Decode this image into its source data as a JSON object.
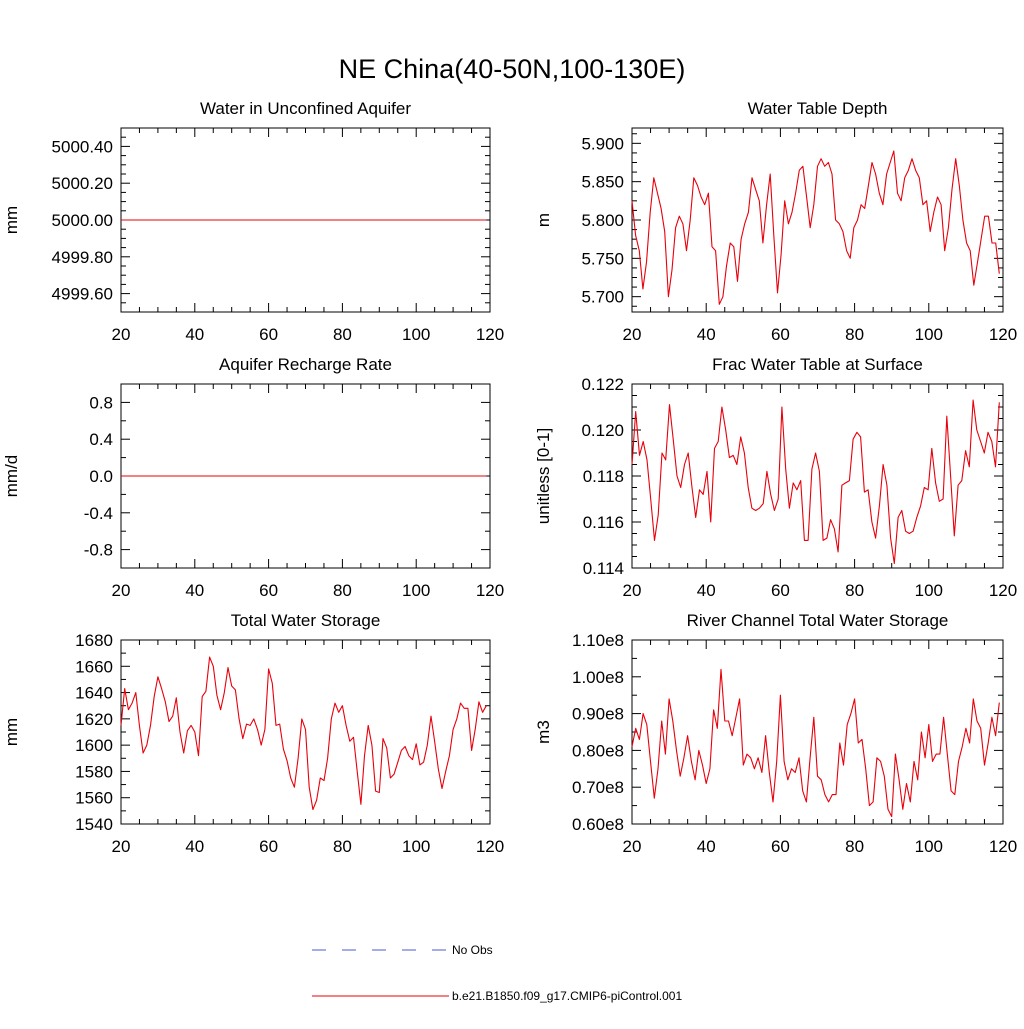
{
  "title": "NE China(40-50N,100-130E)",
  "legend": {
    "entries": [
      {
        "label": "No Obs",
        "color": "#4a5bd4",
        "dash": "dashed"
      },
      {
        "label": "b.e21.B1850.f09_g17.CMIP6-piControl.001",
        "color": "#e8000b",
        "dash": "solid"
      }
    ]
  },
  "chart_data": [
    {
      "type": "line",
      "title": "Water in Unconfined Aquifer",
      "ylabel": "mm",
      "xlim": [
        20,
        120
      ],
      "ylim": [
        4999.5,
        5000.5
      ],
      "x_ticks": [
        20,
        40,
        60,
        80,
        100,
        120
      ],
      "x_tick_labels": [
        "20",
        "40",
        "60",
        "80",
        "100",
        "120"
      ],
      "y_ticks": [
        4999.6,
        4999.8,
        5000.0,
        5000.2,
        5000.4
      ],
      "y_tick_labels": [
        "4999.60",
        "4999.80",
        "5000.00",
        "5000.20",
        "5000.40"
      ],
      "series": [
        {
          "color": "#e8000b",
          "x_start": 20,
          "x_end": 119,
          "values": [
            5000.0,
            5000.0
          ]
        }
      ]
    },
    {
      "type": "line",
      "title": "Water Table Depth",
      "ylabel": "m",
      "xlim": [
        20,
        120
      ],
      "ylim": [
        5.68,
        5.92
      ],
      "x_ticks": [
        20,
        40,
        60,
        80,
        100,
        120
      ],
      "x_tick_labels": [
        "20",
        "40",
        "60",
        "80",
        "100",
        "120"
      ],
      "y_ticks": [
        5.7,
        5.75,
        5.8,
        5.85,
        5.9
      ],
      "y_tick_labels": [
        "5.700",
        "5.750",
        "5.800",
        "5.850",
        "5.900"
      ],
      "series": [
        {
          "color": "#e8000b",
          "x_start": 20,
          "x_end": 119,
          "values": [
            5.825,
            5.78,
            5.76,
            5.71,
            5.745,
            5.81,
            5.855,
            5.835,
            5.815,
            5.785,
            5.7,
            5.735,
            5.79,
            5.805,
            5.795,
            5.76,
            5.8,
            5.855,
            5.845,
            5.83,
            5.82,
            5.835,
            5.765,
            5.76,
            5.69,
            5.7,
            5.74,
            5.77,
            5.765,
            5.72,
            5.775,
            5.795,
            5.81,
            5.855,
            5.84,
            5.825,
            5.77,
            5.82,
            5.86,
            5.78,
            5.705,
            5.755,
            5.825,
            5.795,
            5.81,
            5.835,
            5.865,
            5.87,
            5.83,
            5.79,
            5.82,
            5.87,
            5.88,
            5.87,
            5.875,
            5.86,
            5.8,
            5.795,
            5.785,
            5.76,
            5.75,
            5.79,
            5.8,
            5.82,
            5.815,
            5.845,
            5.875,
            5.86,
            5.835,
            5.82,
            5.86,
            5.875,
            5.89,
            5.835,
            5.825,
            5.855,
            5.865,
            5.88,
            5.865,
            5.855,
            5.82,
            5.825,
            5.785,
            5.81,
            5.83,
            5.82,
            5.76,
            5.79,
            5.84,
            5.88,
            5.845,
            5.8,
            5.77,
            5.76,
            5.715,
            5.745,
            5.775,
            5.805,
            5.805,
            5.77,
            5.77,
            5.73
          ]
        }
      ]
    },
    {
      "type": "line",
      "title": "Aquifer Recharge Rate",
      "ylabel": "mm/d",
      "xlim": [
        20,
        120
      ],
      "ylim": [
        -1.0,
        1.0
      ],
      "x_ticks": [
        20,
        40,
        60,
        80,
        100,
        120
      ],
      "x_tick_labels": [
        "20",
        "40",
        "60",
        "80",
        "100",
        "120"
      ],
      "y_ticks": [
        -0.8,
        -0.4,
        0.0,
        0.4,
        0.8
      ],
      "y_tick_labels": [
        "-0.8",
        "-0.4",
        "0.0",
        "0.4",
        "0.8"
      ],
      "series": [
        {
          "color": "#e8000b",
          "x_start": 20,
          "x_end": 119,
          "values": [
            0.0,
            0.0
          ]
        }
      ]
    },
    {
      "type": "line",
      "title": "Frac Water Table at Surface",
      "ylabel": "unitless [0-1]",
      "xlim": [
        20,
        120
      ],
      "ylim": [
        0.114,
        0.122
      ],
      "x_ticks": [
        20,
        40,
        60,
        80,
        100,
        120
      ],
      "x_tick_labels": [
        "20",
        "40",
        "60",
        "80",
        "100",
        "120"
      ],
      "y_ticks": [
        0.114,
        0.116,
        0.118,
        0.12,
        0.122
      ],
      "y_tick_labels": [
        "0.114",
        "0.116",
        "0.118",
        "0.120",
        "0.122"
      ],
      "series": [
        {
          "color": "#e8000b",
          "x_start": 20,
          "x_end": 119,
          "values": [
            0.1185,
            0.1208,
            0.1189,
            0.1195,
            0.1187,
            0.117,
            0.1152,
            0.1163,
            0.119,
            0.1187,
            0.1211,
            0.1196,
            0.118,
            0.1175,
            0.1185,
            0.119,
            0.1175,
            0.1162,
            0.1174,
            0.1172,
            0.1182,
            0.116,
            0.1192,
            0.1195,
            0.121,
            0.12,
            0.1188,
            0.1189,
            0.1185,
            0.1197,
            0.119,
            0.1175,
            0.1166,
            0.1165,
            0.1166,
            0.1168,
            0.1182,
            0.1172,
            0.1165,
            0.117,
            0.121,
            0.1183,
            0.1166,
            0.1177,
            0.1174,
            0.1178,
            0.1152,
            0.1152,
            0.1183,
            0.119,
            0.1182,
            0.1152,
            0.1153,
            0.1161,
            0.1157,
            0.1147,
            0.1176,
            0.1177,
            0.1178,
            0.1196,
            0.1199,
            0.1197,
            0.1173,
            0.1174,
            0.116,
            0.1153,
            0.1167,
            0.1185,
            0.1176,
            0.1153,
            0.1142,
            0.1162,
            0.1165,
            0.1156,
            0.1155,
            0.1156,
            0.1162,
            0.1167,
            0.1175,
            0.1174,
            0.1192,
            0.1177,
            0.1169,
            0.117,
            0.1206,
            0.118,
            0.1154,
            0.1176,
            0.1178,
            0.1191,
            0.1184,
            0.1213,
            0.12,
            0.1195,
            0.119,
            0.1199,
            0.1195,
            0.1184,
            0.1212
          ]
        }
      ]
    },
    {
      "type": "line",
      "title": "Total Water Storage",
      "ylabel": "mm",
      "xlim": [
        20,
        120
      ],
      "ylim": [
        1540,
        1680
      ],
      "x_ticks": [
        20,
        40,
        60,
        80,
        100,
        120
      ],
      "x_tick_labels": [
        "20",
        "40",
        "60",
        "80",
        "100",
        "120"
      ],
      "y_ticks": [
        1540,
        1560,
        1580,
        1600,
        1620,
        1640,
        1660,
        1680
      ],
      "y_tick_labels": [
        "1540",
        "1560",
        "1580",
        "1600",
        "1620",
        "1640",
        "1660",
        "1680"
      ],
      "series": [
        {
          "color": "#e8000b",
          "x_start": 20,
          "x_end": 119,
          "values": [
            1615,
            1643,
            1627,
            1632,
            1640,
            1615,
            1594,
            1600,
            1615,
            1637,
            1652,
            1643,
            1633,
            1618,
            1622,
            1636,
            1610,
            1594,
            1611,
            1615,
            1610,
            1592,
            1637,
            1641,
            1667,
            1660,
            1638,
            1627,
            1640,
            1659,
            1645,
            1642,
            1620,
            1605,
            1616,
            1615,
            1620,
            1612,
            1600,
            1612,
            1658,
            1647,
            1615,
            1616,
            1597,
            1588,
            1575,
            1568,
            1590,
            1620,
            1612,
            1568,
            1551,
            1558,
            1575,
            1573,
            1590,
            1620,
            1632,
            1625,
            1630,
            1615,
            1603,
            1606,
            1580,
            1555,
            1592,
            1615,
            1600,
            1565,
            1564,
            1605,
            1598,
            1575,
            1578,
            1587,
            1596,
            1599,
            1592,
            1589,
            1601,
            1585,
            1587,
            1600,
            1622,
            1603,
            1582,
            1567,
            1580,
            1592,
            1612,
            1620,
            1632,
            1628,
            1628,
            1596,
            1612,
            1633,
            1625,
            1630
          ]
        }
      ]
    },
    {
      "type": "line",
      "title": "River Channel Total Water Storage",
      "ylabel": "m3",
      "xlim": [
        20,
        120
      ],
      "ylim": [
        60000000.0,
        110000000.0
      ],
      "x_ticks": [
        20,
        40,
        60,
        80,
        100,
        120
      ],
      "x_tick_labels": [
        "20",
        "40",
        "60",
        "80",
        "100",
        "120"
      ],
      "y_ticks": [
        60000000.0,
        70000000.0,
        80000000.0,
        90000000.0,
        100000000.0,
        110000000.0
      ],
      "y_tick_labels": [
        "0.60e8",
        "0.70e8",
        "0.80e8",
        "0.90e8",
        "1.00e8",
        "1.10e8"
      ],
      "series": [
        {
          "color": "#e8000b",
          "x_start": 20,
          "x_end": 119,
          "values": [
            81000000.0,
            86000000.0,
            83000000.0,
            90000000.0,
            87000000.0,
            77000000.0,
            67000000.0,
            75000000.0,
            88000000.0,
            79000000.0,
            94000000.0,
            88000000.0,
            80000000.0,
            73000000.0,
            78000000.0,
            84000000.0,
            77000000.0,
            72000000.0,
            80000000.0,
            76000000.0,
            71000000.0,
            75000000.0,
            91000000.0,
            86000000.0,
            102000000.0,
            88000000.0,
            88000000.0,
            84000000.0,
            89000000.0,
            94000000.0,
            76000000.0,
            79000000.0,
            78000000.0,
            75000000.0,
            78000000.0,
            74000000.0,
            84000000.0,
            74000000.0,
            66000000.0,
            77000000.0,
            95000000.0,
            77000000.0,
            72000000.0,
            75000000.0,
            74000000.0,
            78000000.0,
            69000000.0,
            66000000.0,
            78000000.0,
            89000000.0,
            73000000.0,
            72000000.0,
            68000000.0,
            66000000.0,
            68000000.0,
            68000000.0,
            82000000.0,
            76000000.0,
            87000000.0,
            90000000.0,
            94000000.0,
            82000000.0,
            83000000.0,
            75000000.0,
            65000000.0,
            66000000.0,
            78000000.0,
            77000000.0,
            73000000.0,
            64000000.0,
            62000000.0,
            79000000.0,
            72000000.0,
            64000000.0,
            71000000.0,
            66000000.0,
            77000000.0,
            72000000.0,
            85000000.0,
            78000000.0,
            87000000.0,
            77000000.0,
            79000000.0,
            79000000.0,
            89000000.0,
            79000000.0,
            69000000.0,
            68000000.0,
            77000000.0,
            81000000.0,
            86000000.0,
            82000000.0,
            94000000.0,
            88000000.0,
            86000000.0,
            76000000.0,
            82000000.0,
            89000000.0,
            84000000.0,
            93000000.0
          ]
        }
      ]
    }
  ]
}
